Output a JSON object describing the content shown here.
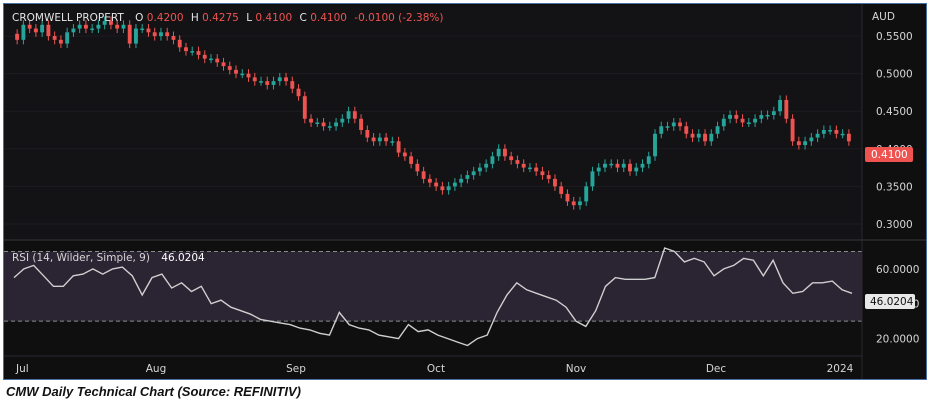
{
  "caption": "CMW Daily Technical Chart (Source: REFINITIV)",
  "colors": {
    "up": "#26a69a",
    "down": "#ef5350",
    "bg": "#0f0f10",
    "rsi_line": "#cfcfcf",
    "rsi_band": "#2a2433",
    "axis_text": "#d6d6d6"
  },
  "chart_data": [
    {
      "type": "candlestick",
      "symbol": "CROMWELL PROPERT",
      "ohlc_header": {
        "o_label": "O",
        "o": "0.4200",
        "h_label": "H",
        "h": "0.4275",
        "l_label": "L",
        "l": "0.4100",
        "c_label": "C",
        "c": "0.4100",
        "change": "-0.0100 (-2.38%)"
      },
      "currency": "AUD",
      "last_price": "0.4100",
      "y_ticks": [
        "0.5500",
        "0.5000",
        "0.4500",
        "0.4000",
        "0.3500",
        "0.3000"
      ],
      "ylim": [
        0.28,
        0.59
      ],
      "x_labels": [
        "Jul",
        "Aug",
        "Sep",
        "Oct",
        "Nov",
        "Dec",
        "2024"
      ],
      "closes": [
        0.545,
        0.565,
        0.56,
        0.555,
        0.565,
        0.55,
        0.545,
        0.54,
        0.555,
        0.56,
        0.565,
        0.56,
        0.56,
        0.565,
        0.57,
        0.565,
        0.56,
        0.565,
        0.54,
        0.56,
        0.56,
        0.555,
        0.55,
        0.555,
        0.55,
        0.545,
        0.535,
        0.53,
        0.53,
        0.525,
        0.52,
        0.52,
        0.515,
        0.51,
        0.505,
        0.5,
        0.5,
        0.495,
        0.49,
        0.49,
        0.485,
        0.49,
        0.495,
        0.49,
        0.48,
        0.47,
        0.44,
        0.435,
        0.435,
        0.43,
        0.43,
        0.435,
        0.44,
        0.45,
        0.44,
        0.425,
        0.415,
        0.41,
        0.415,
        0.41,
        0.41,
        0.395,
        0.39,
        0.38,
        0.37,
        0.36,
        0.355,
        0.35,
        0.345,
        0.35,
        0.355,
        0.36,
        0.365,
        0.37,
        0.375,
        0.38,
        0.39,
        0.4,
        0.39,
        0.385,
        0.38,
        0.375,
        0.375,
        0.37,
        0.365,
        0.36,
        0.35,
        0.34,
        0.33,
        0.325,
        0.33,
        0.35,
        0.37,
        0.375,
        0.38,
        0.38,
        0.375,
        0.38,
        0.37,
        0.375,
        0.38,
        0.39,
        0.42,
        0.43,
        0.43,
        0.435,
        0.43,
        0.42,
        0.415,
        0.42,
        0.41,
        0.42,
        0.43,
        0.44,
        0.445,
        0.44,
        0.435,
        0.435,
        0.44,
        0.445,
        0.445,
        0.45,
        0.465,
        0.44,
        0.41,
        0.405,
        0.41,
        0.415,
        0.42,
        0.425,
        0.425,
        0.42,
        0.42,
        0.41
      ],
      "series": [
        {
          "name": "CROMWELL PROPERT"
        }
      ]
    },
    {
      "type": "line",
      "title": "RSI (14, Wilder, Simple, 9)",
      "value_label": "46.0204",
      "y_ticks": [
        "60.0000",
        "40.0000",
        "20.0000"
      ],
      "ylim": [
        10,
        76
      ],
      "band": [
        30,
        70
      ],
      "values": [
        55,
        60,
        62,
        56,
        50,
        50,
        56,
        57,
        60,
        57,
        60,
        61,
        56,
        45,
        55,
        57,
        49,
        52,
        47,
        50,
        40,
        42,
        38,
        36,
        34,
        31,
        30,
        29,
        28,
        26,
        25,
        23,
        22,
        35,
        28,
        26,
        25,
        22,
        21,
        20,
        28,
        24,
        25,
        22,
        20,
        18,
        16,
        20,
        22,
        35,
        45,
        52,
        48,
        46,
        44,
        42,
        38,
        30,
        27,
        36,
        50,
        55,
        54,
        54,
        54,
        55,
        72,
        70,
        64,
        66,
        64,
        56,
        60,
        62,
        66,
        65,
        56,
        65,
        52,
        46,
        47,
        52,
        52,
        53,
        48,
        46
      ],
      "series": [
        {
          "name": "RSI"
        }
      ]
    }
  ]
}
